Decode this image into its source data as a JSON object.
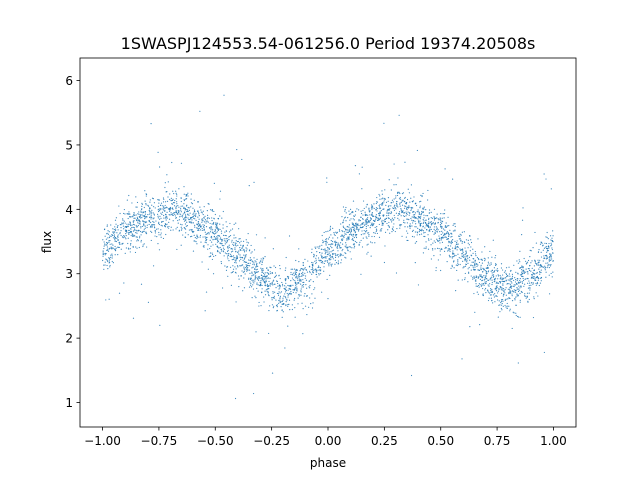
{
  "chart_data": {
    "type": "scatter",
    "title": "1SWASPJ124553.54-061256.0 Period 19374.20508s",
    "xlabel": "phase",
    "ylabel": "flux",
    "xlim": [
      -1.1,
      1.1
    ],
    "ylim": [
      0.62,
      6.35
    ],
    "x_ticks": [
      -1.0,
      -0.75,
      -0.5,
      -0.25,
      0.0,
      0.25,
      0.5,
      0.75,
      1.0
    ],
    "x_tick_labels": [
      "−1.00",
      "−0.75",
      "−0.50",
      "−0.25",
      "0.00",
      "0.25",
      "0.50",
      "0.75",
      "1.00"
    ],
    "y_ticks": [
      1,
      2,
      3,
      4,
      5,
      6
    ],
    "y_tick_labels": [
      "1",
      "2",
      "3",
      "4",
      "5",
      "6"
    ],
    "grid": false,
    "legend": "none",
    "point_color": "#1f77b4",
    "phase_range": [
      -1.0,
      1.0
    ],
    "light_curve": {
      "phase": [
        -1.0,
        -0.9,
        -0.8,
        -0.7,
        -0.6,
        -0.5,
        -0.4,
        -0.3,
        -0.2,
        -0.1,
        0.0,
        0.1,
        0.2,
        0.3,
        0.4,
        0.5,
        0.6,
        0.7,
        0.8,
        0.9,
        1.0
      ],
      "flux": [
        3.35,
        3.65,
        3.88,
        3.98,
        3.85,
        3.6,
        3.3,
        2.95,
        2.72,
        2.95,
        3.35,
        3.65,
        3.88,
        3.98,
        3.85,
        3.6,
        3.3,
        2.95,
        2.72,
        2.95,
        3.35
      ]
    },
    "scatter_sigma": 0.18,
    "outlier_fraction": 0.035,
    "outlier_range": [
      0.95,
      6.1
    ]
  }
}
